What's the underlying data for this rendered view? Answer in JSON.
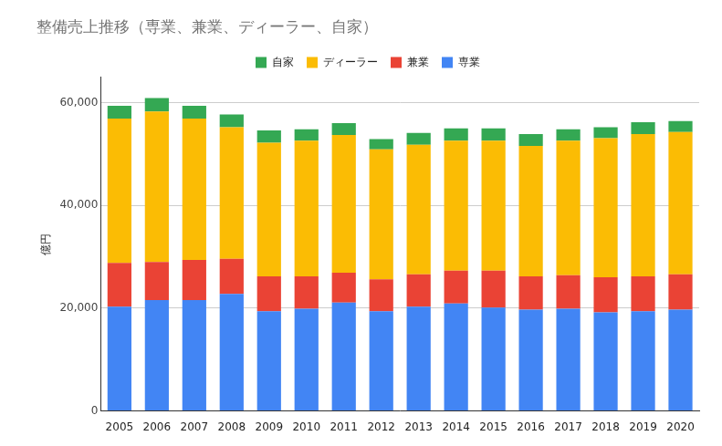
{
  "chart_data": {
    "type": "bar",
    "title": "整備売上推移（専業、兼業、ディーラー、自家）",
    "y_label": "億円",
    "categories": [
      "2005",
      "2006",
      "2007",
      "2008",
      "2009",
      "2010",
      "2011",
      "2012",
      "2013",
      "2014",
      "2015",
      "2016",
      "2017",
      "2018",
      "2019",
      "2020"
    ],
    "series": [
      {
        "name": "専業",
        "color": "#4285f4",
        "values": [
          20300,
          21600,
          21600,
          22800,
          19400,
          19900,
          21100,
          19400,
          20300,
          20900,
          20100,
          19700,
          19900,
          19200,
          19400,
          19700
        ]
      },
      {
        "name": "兼業",
        "color": "#ea4335",
        "values": [
          8500,
          7400,
          7800,
          6800,
          6800,
          6300,
          5800,
          6200,
          6300,
          6400,
          7200,
          6500,
          6500,
          6800,
          6800,
          6900
        ]
      },
      {
        "name": "ディーラー",
        "color": "#fbbc04",
        "values": [
          28100,
          29300,
          27500,
          25600,
          26000,
          26400,
          26800,
          25300,
          25200,
          25300,
          25300,
          25400,
          26200,
          27100,
          27700,
          27700
        ]
      },
      {
        "name": "自家",
        "color": "#34a853",
        "values": [
          2500,
          2600,
          2500,
          2500,
          2400,
          2200,
          2300,
          2000,
          2300,
          2400,
          2400,
          2300,
          2200,
          2100,
          2300,
          2100
        ]
      }
    ],
    "stacked": true,
    "ylim": [
      0,
      65000
    ],
    "yticks": [
      0,
      {
        "value": 20000,
        "label": "20,000"
      },
      {
        "value": 40000,
        "label": "40,000"
      },
      {
        "value": 60000,
        "label": "60,000"
      }
    ],
    "grid": true,
    "legend": "top"
  }
}
